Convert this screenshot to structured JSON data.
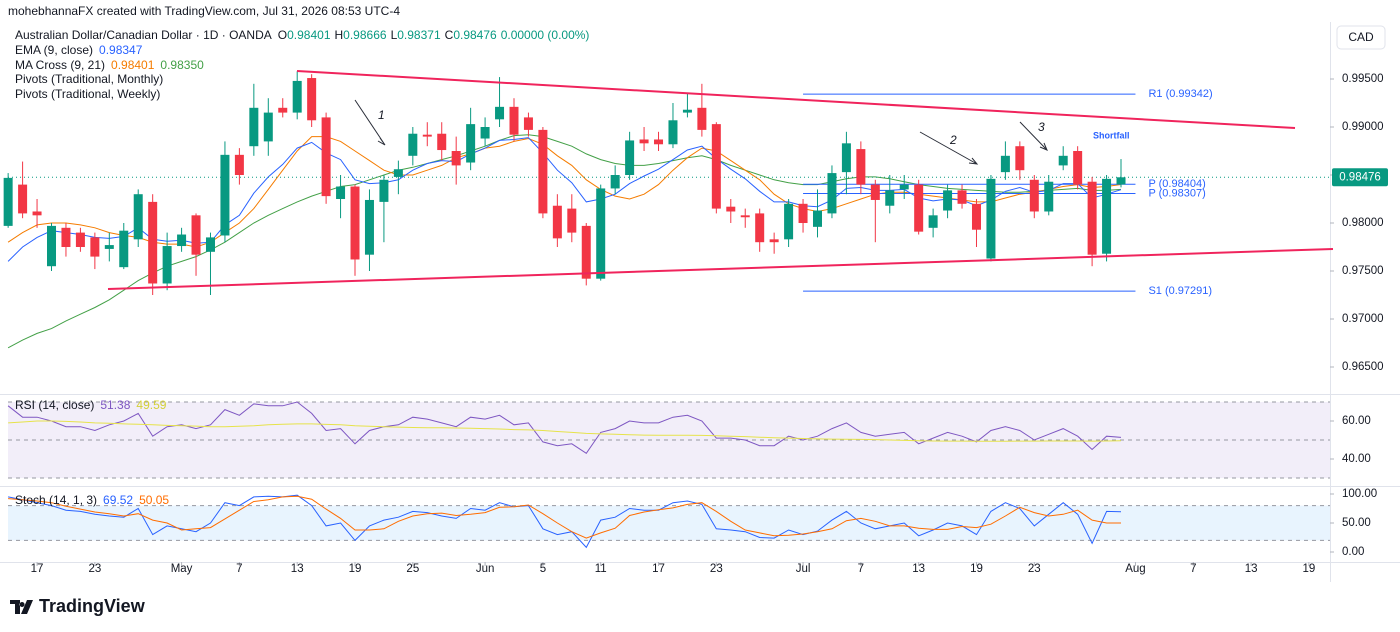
{
  "chart_data": {
    "type": "candlestick",
    "header": "mohebhannaFX created with TradingView.com, Jul 31, 2026 08:53 UTC-4",
    "title": "Australian Dollar/Canadian Dollar · 1D · OANDA",
    "ohlc_letters": [
      "O",
      "H",
      "L",
      "C"
    ],
    "change_label": "0.00000 (0.00%)",
    "currency": "CAD",
    "brand": "TradingView",
    "up_color": "#089981",
    "down_color": "#f23645",
    "x": [
      0,
      1,
      2,
      3,
      4,
      5,
      6,
      7,
      8,
      9,
      10,
      11,
      12,
      13,
      14,
      15,
      16,
      17,
      18,
      19,
      20,
      21,
      22,
      23,
      24,
      25,
      26,
      27,
      28,
      29,
      30,
      31,
      32,
      33,
      34,
      35,
      36,
      37,
      38,
      39,
      40,
      41,
      42,
      43,
      44,
      45,
      46,
      47,
      48,
      49,
      50,
      51,
      52,
      53,
      54,
      55,
      56,
      57,
      58,
      59,
      60,
      61,
      62,
      63,
      64,
      65,
      66,
      67,
      68,
      69,
      70,
      71,
      72,
      73,
      74,
      75,
      76,
      77
    ],
    "open": [
      0.9797,
      0.984,
      0.9812,
      0.9755,
      0.9795,
      0.979,
      0.9785,
      0.9773,
      0.9754,
      0.9783,
      0.9822,
      0.9737,
      0.9776,
      0.9808,
      0.977,
      0.9787,
      0.9871,
      0.988,
      0.9885,
      0.992,
      0.9915,
      0.9951,
      0.991,
      0.9825,
      0.9838,
      0.9767,
      0.9822,
      0.9848,
      0.987,
      0.9892,
      0.9893,
      0.9875,
      0.9863,
      0.9888,
      0.9908,
      0.9921,
      0.991,
      0.9897,
      0.9818,
      0.9815,
      0.9797,
      0.9742,
      0.9836,
      0.985,
      0.9887,
      0.9887,
      0.9882,
      0.9915,
      0.992,
      0.9903,
      0.9817,
      0.9808,
      0.981,
      0.9783,
      0.9783,
      0.982,
      0.9796,
      0.981,
      0.9853,
      0.9877,
      0.984,
      0.9818,
      0.9835,
      0.984,
      0.9795,
      0.9813,
      0.9834,
      0.982,
      0.9763,
      0.9853,
      0.988,
      0.9845,
      0.9812,
      0.986,
      0.9875,
      0.9843,
      0.9768,
      0.98401
    ],
    "high": [
      0.9852,
      0.9864,
      0.9825,
      0.98,
      0.98,
      0.9795,
      0.979,
      0.979,
      0.98,
      0.9835,
      0.983,
      0.979,
      0.9795,
      0.981,
      0.979,
      0.9885,
      0.9878,
      0.9945,
      0.993,
      0.993,
      0.9958,
      0.9955,
      0.9915,
      0.985,
      0.984,
      0.9835,
      0.985,
      0.9865,
      0.99,
      0.9905,
      0.9905,
      0.989,
      0.992,
      0.991,
      0.9952,
      0.993,
      0.9915,
      0.99,
      0.983,
      0.983,
      0.98,
      0.984,
      0.986,
      0.9895,
      0.99,
      0.9895,
      0.9925,
      0.9935,
      0.9945,
      0.9905,
      0.9825,
      0.9815,
      0.9815,
      0.979,
      0.9825,
      0.9825,
      0.9835,
      0.986,
      0.9895,
      0.9885,
      0.9845,
      0.985,
      0.985,
      0.9845,
      0.9815,
      0.984,
      0.984,
      0.9825,
      0.985,
      0.9885,
      0.9885,
      0.985,
      0.985,
      0.988,
      0.988,
      0.9848,
      0.985,
      0.98666
    ],
    "low": [
      0.9795,
      0.9805,
      0.9795,
      0.975,
      0.9765,
      0.977,
      0.9752,
      0.976,
      0.9752,
      0.9775,
      0.9725,
      0.973,
      0.977,
      0.9745,
      0.9725,
      0.978,
      0.984,
      0.987,
      0.987,
      0.991,
      0.9908,
      0.99,
      0.982,
      0.9805,
      0.9745,
      0.975,
      0.978,
      0.983,
      0.986,
      0.988,
      0.9865,
      0.984,
      0.9855,
      0.988,
      0.99,
      0.9885,
      0.989,
      0.9805,
      0.9775,
      0.978,
      0.9735,
      0.974,
      0.983,
      0.9845,
      0.9875,
      0.9875,
      0.9878,
      0.991,
      0.989,
      0.981,
      0.98,
      0.9795,
      0.977,
      0.9768,
      0.9775,
      0.979,
      0.9785,
      0.9805,
      0.983,
      0.983,
      0.978,
      0.981,
      0.9825,
      0.9788,
      0.9785,
      0.9805,
      0.9815,
      0.9775,
      0.976,
      0.9845,
      0.9845,
      0.9805,
      0.9808,
      0.9855,
      0.9835,
      0.9755,
      0.976,
      0.98371
    ],
    "close": [
      0.9847,
      0.981,
      0.9808,
      0.9797,
      0.9775,
      0.9775,
      0.9765,
      0.9777,
      0.9792,
      0.983,
      0.9737,
      0.9776,
      0.9788,
      0.9767,
      0.9785,
      0.9871,
      0.985,
      0.992,
      0.9915,
      0.9915,
      0.9948,
      0.9907,
      0.9828,
      0.9838,
      0.9762,
      0.9824,
      0.9845,
      0.9856,
      0.9893,
      0.989,
      0.9876,
      0.986,
      0.9903,
      0.99,
      0.9921,
      0.9892,
      0.9897,
      0.981,
      0.9784,
      0.979,
      0.9742,
      0.9836,
      0.985,
      0.9886,
      0.9883,
      0.9882,
      0.9907,
      0.9918,
      0.9897,
      0.9815,
      0.9812,
      0.9806,
      0.978,
      0.978,
      0.982,
      0.98,
      0.9813,
      0.9852,
      0.9883,
      0.984,
      0.9824,
      0.9834,
      0.984,
      0.9791,
      0.9808,
      0.9834,
      0.982,
      0.9793,
      0.9846,
      0.987,
      0.9855,
      0.9812,
      0.9843,
      0.987,
      0.984,
      0.9767,
      0.9846,
      0.98476
    ],
    "xlim": [
      -0.01,
      91.46
    ],
    "xticks": [
      {
        "value": 2,
        "label": "17"
      },
      {
        "value": 6,
        "label": "23"
      },
      {
        "value": 12,
        "label": "May"
      },
      {
        "value": 16,
        "label": "7"
      },
      {
        "value": 20,
        "label": "13"
      },
      {
        "value": 24,
        "label": "19"
      },
      {
        "value": 28,
        "label": "25"
      },
      {
        "value": 33,
        "label": "Jun"
      },
      {
        "value": 37,
        "label": "5"
      },
      {
        "value": 41,
        "label": "11"
      },
      {
        "value": 45,
        "label": "17"
      },
      {
        "value": 49,
        "label": "23"
      },
      {
        "value": 55,
        "label": "Jul"
      },
      {
        "value": 59,
        "label": "7"
      },
      {
        "value": 63,
        "label": "13"
      },
      {
        "value": 67,
        "label": "19"
      },
      {
        "value": 71,
        "label": "23"
      },
      {
        "value": 78,
        "label": "Aug"
      },
      {
        "value": 82,
        "label": "7"
      },
      {
        "value": 86,
        "label": "13"
      },
      {
        "value": 90,
        "label": "19"
      }
    ],
    "ylim": [
      0.962292,
      1.000938
    ],
    "yticks": [
      {
        "value": 0.965,
        "label": "0.96500"
      },
      {
        "value": 0.97,
        "label": "0.97000"
      },
      {
        "value": 0.975,
        "label": "0.97500"
      },
      {
        "value": 0.98,
        "label": "0.98000"
      },
      {
        "value": 0.985,
        "label": "0.98500"
      },
      {
        "value": 0.99,
        "label": "0.99000"
      },
      {
        "value": 0.995,
        "label": "0.99500"
      }
    ],
    "series": [
      {
        "name": "EMA (9, close)",
        "color": "#2962ff",
        "values": [
          0.976,
          0.9775,
          0.9785,
          0.9792,
          0.979,
          0.9788,
          0.9785,
          0.9784,
          0.9786,
          0.9795,
          0.9783,
          0.9781,
          0.9782,
          0.9779,
          0.978,
          0.9798,
          0.9808,
          0.9831,
          0.9848,
          0.9861,
          0.9878,
          0.9884,
          0.9873,
          0.9866,
          0.9845,
          0.9841,
          0.9842,
          0.9845,
          0.9855,
          0.9862,
          0.9865,
          0.9864,
          0.9872,
          0.9878,
          0.9886,
          0.9887,
          0.9889,
          0.9873,
          0.9855,
          0.9842,
          0.9822,
          0.9825,
          0.983,
          0.9841,
          0.9849,
          0.9856,
          0.9866,
          0.9876,
          0.988,
          0.9867,
          0.9856,
          0.9846,
          0.9833,
          0.9822,
          0.9822,
          0.9818,
          0.9817,
          0.9824,
          0.9836,
          0.9837,
          0.9834,
          0.9834,
          0.9835,
          0.9826,
          0.9823,
          0.9825,
          0.9824,
          0.9818,
          0.9824,
          0.9833,
          0.9837,
          0.9832,
          0.9834,
          0.9841,
          0.9841,
          0.9826,
          0.983,
          0.98347
        ]
      },
      {
        "name": "MA Cross (9, 21)",
        "color": "#f57c00",
        "legend_values": [
          "0.98401",
          "0.98350"
        ],
        "values": [
          0.978,
          0.979,
          0.9798,
          0.98,
          0.98,
          0.9798,
          0.9795,
          0.979,
          0.9787,
          0.9785,
          0.978,
          0.9778,
          0.9778,
          0.9775,
          0.978,
          0.979,
          0.98,
          0.9815,
          0.9835,
          0.9855,
          0.9875,
          0.989,
          0.989,
          0.9885,
          0.9875,
          0.9865,
          0.9855,
          0.985,
          0.985,
          0.9855,
          0.986,
          0.9868,
          0.9872,
          0.9878,
          0.988,
          0.9885,
          0.9888,
          0.9882,
          0.987,
          0.986,
          0.9845,
          0.9835,
          0.9828,
          0.9825,
          0.983,
          0.984,
          0.9855,
          0.9868,
          0.9878,
          0.9875,
          0.9865,
          0.9855,
          0.9845,
          0.983,
          0.982,
          0.9815,
          0.9812,
          0.9815,
          0.982,
          0.9825,
          0.983,
          0.9832,
          0.9832,
          0.983,
          0.9828,
          0.9826,
          0.9824,
          0.9822,
          0.9822,
          0.9826,
          0.983,
          0.9832,
          0.9835,
          0.9838,
          0.984,
          0.9837,
          0.9838,
          0.98401
        ]
      },
      {
        "color": "#43a047",
        "values": [
          0.967,
          0.9678,
          0.9685,
          0.969,
          0.9698,
          0.9705,
          0.9712,
          0.972,
          0.973,
          0.974,
          0.9748,
          0.9755,
          0.976,
          0.9765,
          0.9772,
          0.978,
          0.979,
          0.98,
          0.9808,
          0.9815,
          0.9822,
          0.9828,
          0.9833,
          0.9838,
          0.984,
          0.9845,
          0.985,
          0.9855,
          0.9858,
          0.9862,
          0.9866,
          0.987,
          0.9875,
          0.988,
          0.9886,
          0.9891,
          0.9892,
          0.989,
          0.9885,
          0.988,
          0.9872,
          0.9866,
          0.9862,
          0.986,
          0.986,
          0.9862,
          0.9865,
          0.9868,
          0.987,
          0.9866,
          0.986,
          0.9855,
          0.985,
          0.9845,
          0.9842,
          0.984,
          0.984,
          0.9843,
          0.9846,
          0.9848,
          0.9848,
          0.9846,
          0.9843,
          0.984,
          0.9838,
          0.9836,
          0.9835,
          0.9834,
          0.9833,
          0.9832,
          0.9832,
          0.9833,
          0.9834,
          0.9835,
          0.9836,
          0.9834,
          0.9834,
          0.9835
        ]
      }
    ],
    "pivot_names": [
      "Pivots (Traditional, Monthly)",
      "Pivots (Traditional, Weekly)"
    ],
    "pivot_color": "#2962ff",
    "pivots": [
      {
        "label": "R1 (0.99342)",
        "value": 0.99342
      },
      {
        "label": "P (0.98404)",
        "value": 0.98404
      },
      {
        "label": "P (0.98307)",
        "value": 0.98307
      },
      {
        "label": "S1 (0.97291)",
        "value": 0.97291
      }
    ],
    "annotations": [
      "1",
      "2",
      "3",
      "Shortfall"
    ],
    "rsi": {
      "name": "RSI (14, close)",
      "ylim": [
        26.32,
        73.16
      ],
      "yticks": [
        {
          "value": 40,
          "label": "40.00"
        },
        {
          "value": 60,
          "label": "60.00"
        }
      ],
      "bands": [
        30,
        50,
        70
      ],
      "series": [
        {
          "color": "#7e57c2",
          "values": [
            68,
            62,
            62,
            60,
            57,
            57,
            55,
            58,
            60,
            64,
            52,
            57,
            58,
            56,
            58,
            66,
            63,
            69,
            68,
            68,
            70,
            64,
            55,
            56,
            48,
            55,
            57,
            58,
            62,
            61,
            59,
            57,
            62,
            61,
            63,
            58,
            59,
            49,
            47,
            48,
            43,
            54,
            56,
            60,
            59,
            59,
            62,
            63,
            60,
            51,
            51,
            50,
            47,
            47,
            52,
            50,
            52,
            56,
            59,
            54,
            52,
            53,
            54,
            48,
            51,
            54,
            52,
            49,
            55,
            57,
            55,
            50,
            53,
            56,
            52,
            45,
            52,
            51.38
          ]
        },
        {
          "color": "#e6e34a",
          "values": [
            59,
            59.5,
            60,
            60,
            59.8,
            59.5,
            59,
            58.8,
            58.5,
            58.3,
            58,
            57.7,
            57.5,
            57.3,
            57,
            57,
            57.2,
            57.5,
            58,
            58.3,
            58.5,
            58.5,
            58.2,
            58,
            57.5,
            57.2,
            57,
            56.8,
            56.6,
            56.5,
            56.4,
            56.3,
            56.2,
            56,
            55.8,
            55.5,
            55.3,
            55,
            54.5,
            54,
            53.5,
            53.2,
            53,
            52.8,
            52.6,
            52.5,
            52.5,
            52.5,
            52.4,
            52.2,
            52,
            51.8,
            51.5,
            51.2,
            51,
            50.8,
            50.6,
            50.5,
            50.4,
            50.3,
            50.2,
            50,
            49.8,
            49.6,
            49.5,
            49.4,
            49.4,
            49.3,
            49.3,
            49.3,
            49.4,
            49.4,
            49.5,
            49.5,
            49.5,
            49.4,
            49.5,
            49.59
          ]
        }
      ]
    },
    "stoch": {
      "name": "Stoch (14, 1, 3)",
      "ylim": [
        -17.24,
        110.34
      ],
      "yticks": [
        {
          "value": 0,
          "label": "0.00"
        },
        {
          "value": 50,
          "label": "50.00"
        },
        {
          "value": 100,
          "label": "100.00"
        }
      ],
      "bands": [
        20,
        80
      ],
      "series": [
        {
          "color": "#2962ff",
          "values": [
            95,
            90,
            85,
            80,
            72,
            70,
            65,
            62,
            60,
            75,
            30,
            45,
            40,
            35,
            50,
            85,
            80,
            95,
            96,
            95,
            98,
            80,
            45,
            50,
            20,
            45,
            55,
            60,
            70,
            68,
            62,
            58,
            75,
            72,
            85,
            78,
            80,
            40,
            30,
            35,
            8,
            55,
            60,
            75,
            72,
            72,
            85,
            88,
            82,
            40,
            38,
            35,
            25,
            24,
            38,
            30,
            36,
            55,
            70,
            50,
            40,
            45,
            50,
            28,
            38,
            50,
            45,
            30,
            70,
            85,
            75,
            45,
            65,
            85,
            65,
            15,
            70,
            69.52
          ]
        },
        {
          "color": "#ff6d00",
          "values": [
            92,
            90,
            88,
            85,
            79,
            74,
            69,
            66,
            62,
            66,
            55,
            50,
            38,
            40,
            42,
            57,
            72,
            87,
            90,
            95,
            96,
            91,
            74,
            58,
            38,
            38,
            40,
            53,
            62,
            66,
            67,
            63,
            65,
            68,
            77,
            78,
            81,
            66,
            50,
            35,
            24,
            33,
            41,
            63,
            69,
            73,
            76,
            82,
            85,
            70,
            53,
            38,
            33,
            28,
            29,
            31,
            35,
            40,
            54,
            58,
            53,
            45,
            45,
            41,
            39,
            39,
            44,
            42,
            48,
            62,
            77,
            68,
            62,
            65,
            72,
            55,
            50,
            50.05
          ]
        }
      ]
    }
  }
}
